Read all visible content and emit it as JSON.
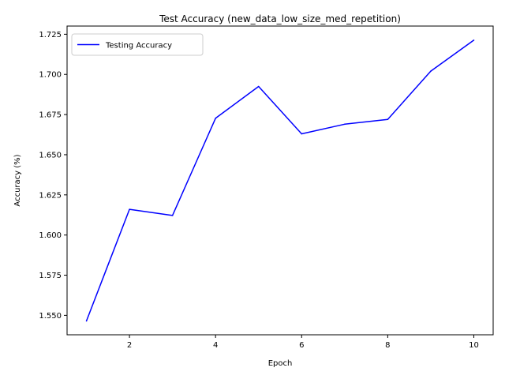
{
  "chart_data": {
    "type": "line",
    "title": "Test Accuracy (new_data_low_size_med_repetition)",
    "xlabel": "Epoch",
    "ylabel": "Accuracy (%)",
    "xlim": [
      0.55,
      10.45
    ],
    "ylim": [
      1.5379,
      1.7301
    ],
    "xticks": [
      2,
      4,
      6,
      8,
      10
    ],
    "yticks": [
      1.55,
      1.575,
      1.6,
      1.625,
      1.65,
      1.675,
      1.7,
      1.725
    ],
    "grid": false,
    "legend_position": "top-left",
    "x": [
      1,
      2,
      3,
      4,
      5,
      6,
      7,
      8,
      9,
      10
    ],
    "series": [
      {
        "name": "Testing Accuracy",
        "color": "#0000ff",
        "values": [
          1.5465,
          1.616,
          1.6122,
          1.6727,
          1.6925,
          1.663,
          1.669,
          1.672,
          1.702,
          1.7213
        ]
      }
    ]
  }
}
